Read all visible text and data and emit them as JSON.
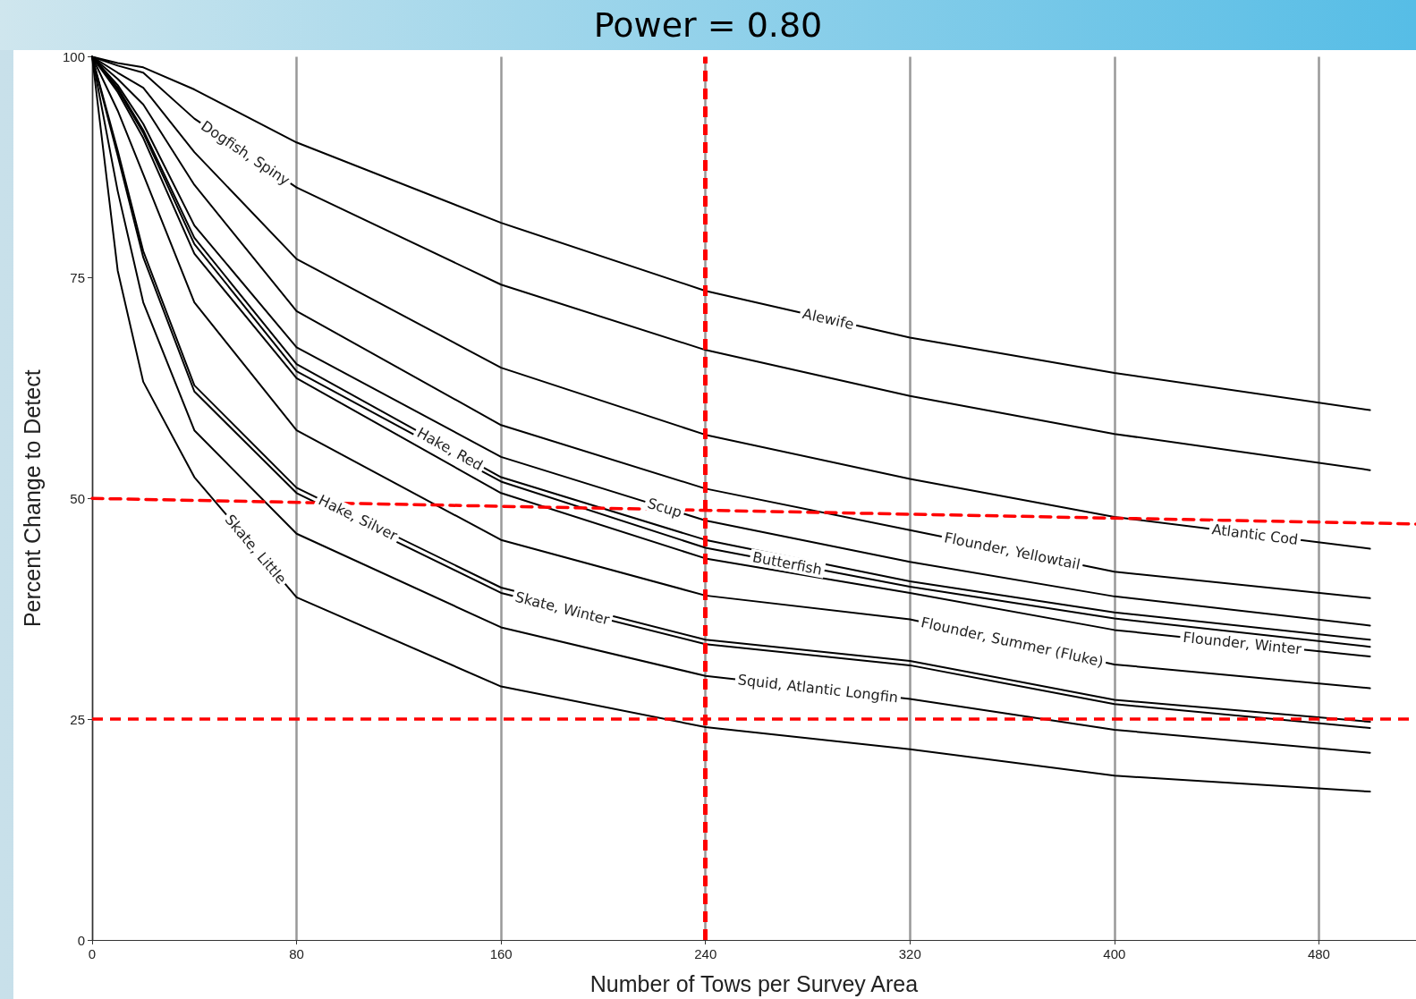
{
  "chart_data": {
    "type": "line",
    "title": "Power = 0.80",
    "xlabel": "Number of Tows per Survey Area",
    "ylabel": "Percent Change to Detect",
    "x": [
      0,
      10,
      20,
      40,
      80,
      160,
      240,
      320,
      400,
      500
    ],
    "xlim": [
      0,
      518
    ],
    "xticks": [
      0,
      80,
      160,
      240,
      320,
      400,
      480
    ],
    "ylim": [
      0,
      100
    ],
    "yticks": [
      0,
      25,
      50,
      75,
      100
    ],
    "grid": "x",
    "legend": false,
    "marker": "none",
    "line_style": "solid",
    "series": [
      {
        "name": "Dogfish, Spiny",
        "color": "#000000",
        "values": [
          100,
          99.0,
          98.2,
          93.0,
          85.2,
          74.2,
          66.8,
          61.6,
          57.3,
          53.2
        ]
      },
      {
        "name": "Alewife",
        "color": "#000000",
        "values": [
          100,
          99.3,
          98.8,
          96.3,
          90.3,
          81.2,
          73.5,
          68.2,
          64.2,
          60.0
        ]
      },
      {
        "name": "Atlantic Cod",
        "color": "#000000",
        "values": [
          100,
          98.2,
          96.5,
          89.2,
          77.1,
          64.8,
          57.2,
          52.2,
          47.9,
          44.3
        ]
      },
      {
        "name": "Flounder, Yellowtail",
        "color": "#000000",
        "values": [
          100,
          97.5,
          94.6,
          85.5,
          71.2,
          58.3,
          51.1,
          46.4,
          41.7,
          38.7
        ]
      },
      {
        "name": "Scup",
        "color": "#000000",
        "values": [
          100,
          96.8,
          92.4,
          80.9,
          67.1,
          54.7,
          47.5,
          42.8,
          38.9,
          35.6
        ]
      },
      {
        "name": "Hake, Red",
        "color": "#000000",
        "values": [
          100,
          96.5,
          91.7,
          79.5,
          65.2,
          52.4,
          45.3,
          40.6,
          37.1,
          34.0
        ]
      },
      {
        "name": "Butterfish",
        "color": "#000000",
        "values": [
          100,
          96.3,
          91.4,
          78.8,
          64.4,
          51.9,
          44.4,
          40.0,
          36.4,
          33.2
        ]
      },
      {
        "name": "Flounder, Winter",
        "color": "#000000",
        "values": [
          100,
          96.0,
          90.8,
          77.7,
          63.6,
          50.6,
          43.2,
          39.3,
          35.1,
          32.1
        ]
      },
      {
        "name": "Flounder, Summer (Fluke)",
        "color": "#000000",
        "values": [
          100,
          93.9,
          86.7,
          72.2,
          57.7,
          45.3,
          39.0,
          36.3,
          31.2,
          28.5
        ]
      },
      {
        "name": "Hake, Silver",
        "color": "#000000",
        "values": [
          100,
          89.4,
          78.0,
          62.8,
          51.2,
          39.9,
          34.0,
          31.6,
          27.2,
          24.7
        ]
      },
      {
        "name": "Skate, Winter",
        "color": "#000000",
        "values": [
          100,
          88.8,
          77.3,
          62.1,
          50.6,
          39.3,
          33.5,
          31.1,
          26.7,
          24.0
        ]
      },
      {
        "name": "Squid, Atlantic Longfin",
        "color": "#000000",
        "values": [
          100,
          84.8,
          72.2,
          57.7,
          46.0,
          35.4,
          29.9,
          27.3,
          23.8,
          21.2
        ]
      },
      {
        "name": "Skate, Little",
        "color": "#000000",
        "values": [
          100,
          75.8,
          63.2,
          52.4,
          38.8,
          28.7,
          24.1,
          21.6,
          18.6,
          16.8
        ]
      },
      {
        "color": "#ff0000",
        "line_style": "dashed",
        "x": [
          0,
          518
        ],
        "values": [
          50,
          47.1
        ]
      }
    ],
    "ref_lines": [
      {
        "axis": "y",
        "value": 25,
        "color": "#ff0000",
        "line_style": "dashed"
      },
      {
        "axis": "x",
        "value": 240,
        "color": "#ff0000",
        "line_style": "dashed"
      }
    ]
  }
}
